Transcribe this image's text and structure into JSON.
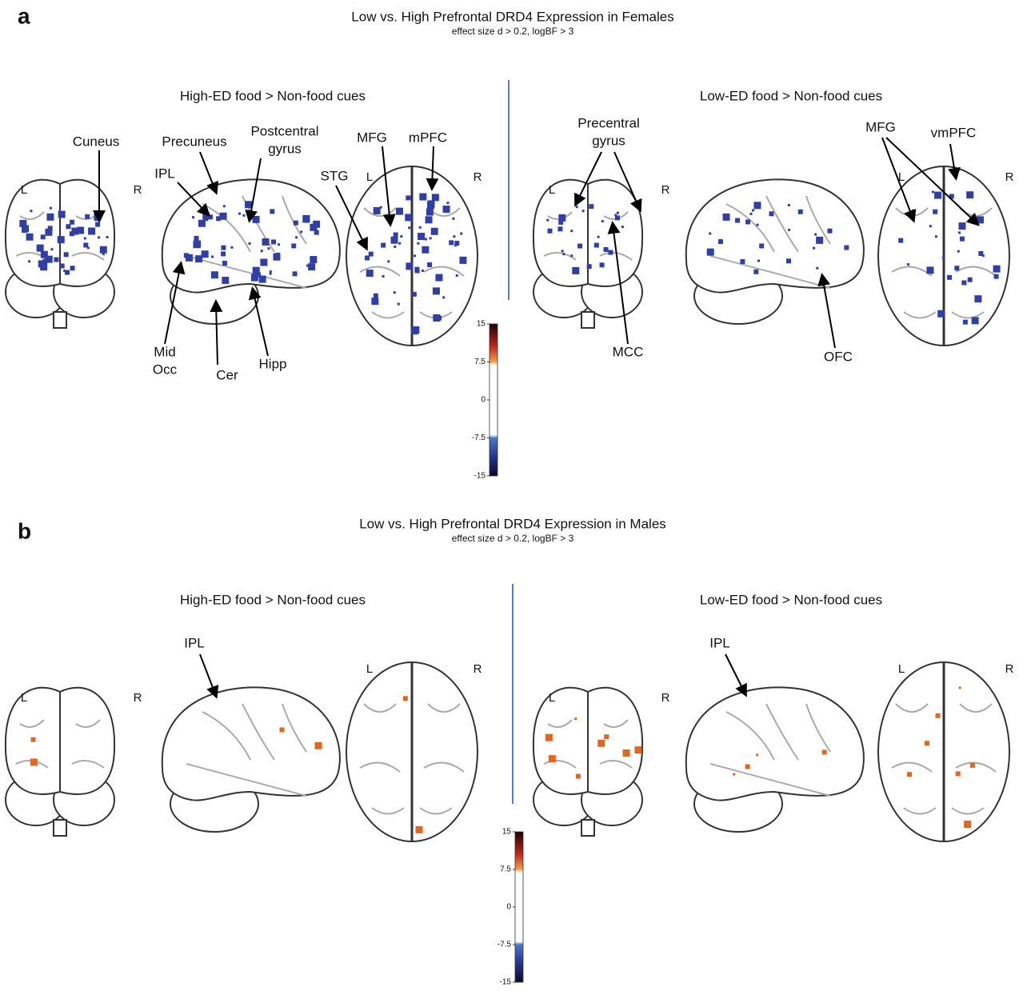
{
  "side_labels": {
    "left": "L",
    "right": "R"
  },
  "panels": [
    {
      "letter": "a",
      "title": "Low vs. High Prefrontal DRD4  Expression in Females",
      "subtitle": "effect size d > 0.2, logBF > 3",
      "conditions": [
        {
          "title": "High-ED food > Non-food cues",
          "annotations": [
            [
              "Cuneus"
            ],
            [
              "Precuneus"
            ],
            [
              "Postcentral",
              "gyrus"
            ],
            [
              "IPL"
            ],
            [
              "MFG"
            ],
            [
              "mPFC"
            ],
            [
              "STG"
            ],
            [
              "Mid",
              "Occ"
            ],
            [
              "Cer"
            ],
            [
              "Hipp"
            ]
          ]
        },
        {
          "title": "Low-ED food > Non-food cues",
          "annotations": [
            [
              "Precentral",
              "gyrus"
            ],
            [
              "MCC"
            ],
            [
              "OFC"
            ],
            [
              "MFG"
            ],
            [
              "vmPFC"
            ]
          ]
        }
      ],
      "colorbar_ticks": [
        15,
        7.5,
        0,
        -7.5,
        -15
      ]
    },
    {
      "letter": "b",
      "title": "Low vs. High Prefrontal DRD4  Expression in Males",
      "subtitle": "effect size d > 0.2, logBF > 3",
      "conditions": [
        {
          "title": "High-ED food > Non-food cues",
          "annotations": [
            [
              "IPL"
            ]
          ]
        },
        {
          "title": "Low-ED food > Non-food cues",
          "annotations": [
            [
              "IPL"
            ]
          ]
        }
      ],
      "colorbar_ticks": [
        15,
        7.5,
        0,
        -7.5,
        -15
      ]
    }
  ]
}
